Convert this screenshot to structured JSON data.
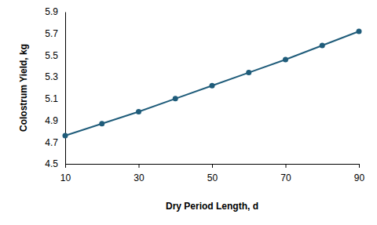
{
  "chart_data": {
    "type": "line",
    "x_label": "Dry Period Length, d",
    "y_label": "Colostrum Yield, kg",
    "x": [
      10,
      20,
      30,
      40,
      50,
      60,
      70,
      80,
      90
    ],
    "values": [
      4.76,
      4.87,
      4.98,
      5.1,
      5.22,
      5.34,
      5.46,
      5.59,
      5.72
    ],
    "color": "#1f5c7a",
    "marker": "circle",
    "xlim": [
      10,
      90
    ],
    "xticks": [
      10,
      30,
      50,
      70,
      90
    ],
    "ylim": [
      4.5,
      5.9
    ],
    "yticks": [
      4.5,
      4.7,
      4.9,
      5.1,
      5.3,
      5.5,
      5.7,
      5.9
    ],
    "grid": false
  }
}
